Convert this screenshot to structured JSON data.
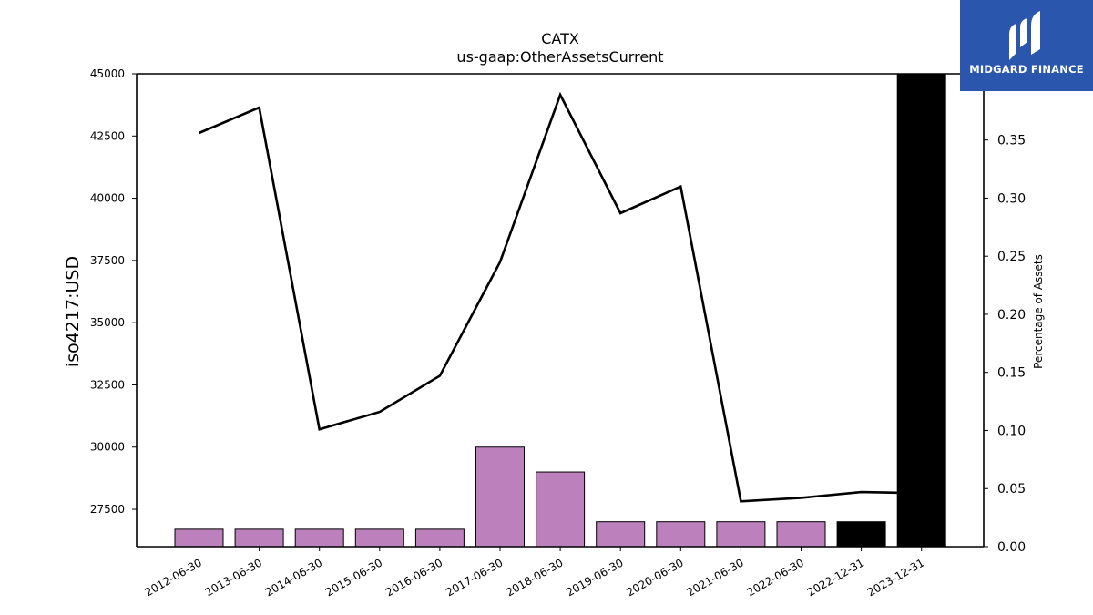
{
  "chart_data": {
    "type": "bar",
    "title": "CATX",
    "subtitle": "us-gaap:OtherAssetsCurrent",
    "ylabel": "iso4217:USD",
    "y2label": "Percentage of Assets",
    "categories": [
      "2012-06-30",
      "2013-06-30",
      "2014-06-30",
      "2015-06-30",
      "2016-06-30",
      "2017-06-30",
      "2018-06-30",
      "2019-06-30",
      "2020-06-30",
      "2021-06-30",
      "2022-06-30",
      "2022-12-31",
      "2023-12-31"
    ],
    "series": [
      {
        "type": "bar",
        "axis": "left",
        "values": [
          26700,
          26700,
          26700,
          26700,
          26700,
          30000,
          29000,
          27000,
          27000,
          27000,
          27000,
          27000,
          45000
        ],
        "colors": [
          "#bc80bd",
          "#bc80bd",
          "#bc80bd",
          "#bc80bd",
          "#bc80bd",
          "#bc80bd",
          "#bc80bd",
          "#bc80bd",
          "#bc80bd",
          "#bc80bd",
          "#bc80bd",
          "#000000",
          "#000000"
        ]
      },
      {
        "type": "line",
        "axis": "right",
        "color": "#000000",
        "values": [
          0.356,
          0.378,
          0.101,
          0.116,
          0.147,
          0.245,
          0.389,
          0.287,
          0.31,
          0.039,
          0.042,
          0.047,
          0.046
        ]
      }
    ],
    "ylim": [
      26000,
      45000
    ],
    "y2lim": [
      0.0,
      0.407
    ],
    "yticks": [
      27500,
      30000,
      32500,
      35000,
      37500,
      40000,
      42500,
      45000
    ],
    "y2ticks": [
      "0.00",
      "0.05",
      "0.10",
      "0.15",
      "0.20",
      "0.25",
      "0.30",
      "0.35"
    ],
    "grid": false
  },
  "logo": {
    "text": "MIDGARD FINANCE",
    "color": "#2a57ad"
  }
}
